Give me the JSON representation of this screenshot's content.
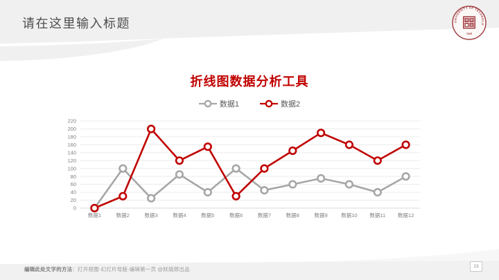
{
  "slide": {
    "header_title": "请在这里输入标题",
    "page_number": "23",
    "footer": {
      "bold": "编辑此处文字的方法",
      "rest": "：打开视图-幻灯片母版-编辑第一页 @妖娆郎出品"
    },
    "logo": {
      "arc_text": "UNIVERSITY OF TECHNOLOGY",
      "year": "1945"
    }
  },
  "chart_data": {
    "type": "line",
    "title": "折线图数据分析工具",
    "categories": [
      "数据1",
      "数据2",
      "数据3",
      "数据4",
      "数据5",
      "数据6",
      "数据7",
      "数据8",
      "数据9",
      "数据10",
      "数据11",
      "数据12"
    ],
    "series": [
      {
        "name": "数据1",
        "color": "#a6a6a6",
        "values": [
          0,
          100,
          25,
          85,
          40,
          100,
          45,
          60,
          75,
          60,
          40,
          80
        ]
      },
      {
        "name": "数据2",
        "color": "#c00000",
        "values": [
          0,
          30,
          200,
          120,
          155,
          30,
          100,
          145,
          190,
          160,
          120,
          160
        ]
      }
    ],
    "ylim": [
      0,
      220
    ],
    "ytick_step": 20,
    "grid": true,
    "legend_position": "top",
    "xlabel": "",
    "ylabel": ""
  },
  "colors": {
    "accent_red": "#c00000",
    "series_gray": "#a6a6a6",
    "band_gray": "#f0f0f0",
    "grid_line": "#ececec",
    "axis_line": "#d9d9d9",
    "tick_text": "#7f7f7f",
    "seal_red": "#a03a3e"
  }
}
